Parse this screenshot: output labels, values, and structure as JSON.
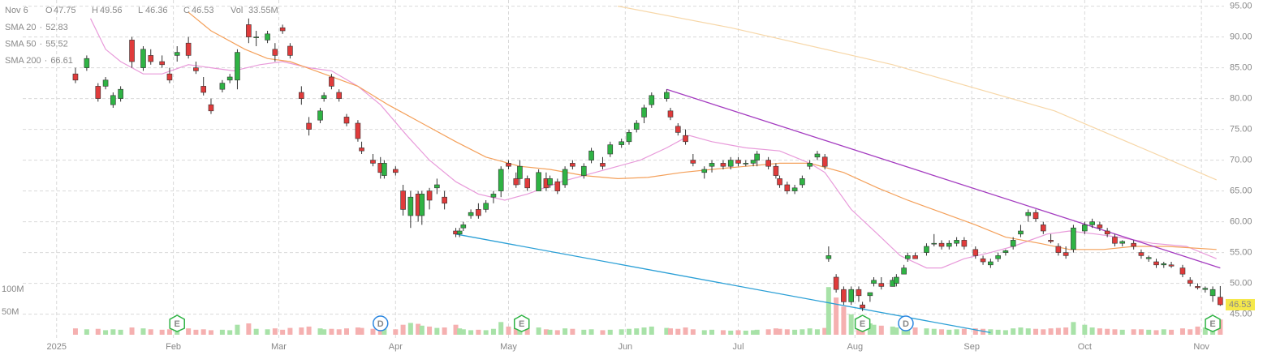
{
  "chart_data": {
    "type": "candlestick",
    "header": {
      "date": "Nov 6",
      "open_label": "O",
      "high_label": "H",
      "low_label": "L",
      "close_label": "C",
      "vol_label": "Vol",
      "vol": {
        "value": 33.55,
        "label": "33.55M"
      }
    },
    "x": [
      6,
      9,
      12,
      14,
      16,
      18,
      21,
      24,
      26,
      29,
      31,
      33,
      36,
      38,
      40,
      42,
      45,
      47,
      49,
      52,
      54,
      57,
      59,
      61,
      63,
      66,
      68,
      71,
      72,
      74,
      76,
      78,
      81,
      82,
      85,
      87,
      88,
      91,
      93,
      95,
      97,
      98,
      100,
      102,
      104,
      107,
      108,
      109,
      111,
      113,
      115,
      117,
      119,
      121,
      123,
      124,
      126,
      129,
      131,
      132,
      134,
      136,
      138,
      141,
      143,
      146,
      148,
      151,
      153,
      155,
      157,
      159,
      163,
      164,
      166,
      168,
      170,
      173,
      175,
      178,
      180,
      182,
      184,
      186,
      187,
      190,
      192,
      193,
      195,
      197,
      199,
      201,
      203,
      205,
      206,
      208,
      210,
      212,
      214,
      215,
      217,
      218,
      220,
      223,
      224,
      226,
      227,
      229,
      232,
      234,
      236,
      238,
      240,
      242,
      245,
      247,
      249,
      251,
      253,
      255,
      257,
      259,
      261,
      263,
      265,
      267,
      269,
      271,
      274,
      276,
      278,
      280,
      282,
      284,
      287,
      289,
      291,
      293,
      295,
      297,
      300,
      302,
      304,
      306,
      308,
      310
    ],
    "open": [
      84,
      85,
      82,
      82,
      79,
      80,
      89.5,
      85,
      87,
      86,
      84,
      87,
      89,
      85,
      82,
      79,
      81.5,
      83,
      83,
      92,
      90,
      89.5,
      88,
      91.5,
      88.5,
      81,
      76,
      76.5,
      80,
      83.5,
      81,
      77,
      76,
      72,
      70,
      69.5,
      67.5,
      68.5,
      65,
      61,
      64.5,
      61,
      65,
      65.5,
      64,
      58.5,
      58,
      59,
      61,
      62,
      62,
      64,
      65,
      69.5,
      67,
      67,
      67,
      65,
      67,
      66,
      66.5,
      66,
      69.5,
      67.5,
      70,
      69.5,
      71,
      72.5,
      73,
      75,
      77,
      79,
      80,
      78,
      75.5,
      74,
      70,
      68,
      69,
      69.5,
      69,
      70,
      69.5,
      69.5,
      70,
      70,
      69,
      67,
      66,
      65,
      66,
      69,
      70.5,
      70.5,
      54,
      51,
      49,
      47,
      49,
      46.5,
      48,
      50,
      50,
      49.5,
      50,
      51.5,
      54,
      54.5,
      55,
      56.5,
      56.5,
      56,
      56.5,
      57,
      55.5,
      54,
      53,
      54,
      55,
      56,
      58,
      61,
      61.5,
      59.5,
      57,
      56,
      55,
      55.5,
      58.5,
      59.5,
      59.5,
      58.5,
      57.5,
      56.5,
      56.5,
      55,
      54,
      53.5,
      53,
      53,
      52.5,
      50.5,
      49.5,
      49,
      48,
      47.75
    ],
    "high": [
      85,
      87,
      82.5,
      83.5,
      81,
      82,
      90,
      88.5,
      88,
      87,
      85,
      88.5,
      90,
      86,
      83.5,
      80,
      83,
      84,
      88,
      93,
      91,
      91,
      89,
      92,
      89,
      82,
      77,
      78.5,
      81,
      84,
      81.5,
      77.5,
      76.5,
      73,
      71,
      70.5,
      70,
      69,
      66,
      65,
      65,
      65,
      65.5,
      67,
      65,
      59,
      59,
      60,
      62,
      63,
      63.5,
      65,
      69,
      70,
      68,
      70,
      67.5,
      68.5,
      68,
      67.5,
      67,
      69,
      70,
      69.5,
      72,
      70.5,
      73,
      73.5,
      75,
      76.5,
      79,
      81,
      81.5,
      78.5,
      76,
      75,
      71,
      69,
      70,
      70,
      70.5,
      70.5,
      70,
      70,
      71.5,
      70.5,
      69.5,
      67.5,
      66.5,
      66,
      67.5,
      70,
      71.5,
      71,
      56,
      51.5,
      49.5,
      49.5,
      49.5,
      47,
      48.5,
      51,
      51,
      51,
      51.5,
      53,
      55,
      55,
      56.5,
      58,
      57,
      57,
      57.5,
      57.5,
      56,
      54.5,
      54,
      55,
      55.5,
      57.5,
      59.5,
      62,
      62,
      60,
      58,
      56.5,
      56,
      59.5,
      60,
      60.5,
      60,
      59,
      58,
      57,
      57,
      55.5,
      54.5,
      54,
      53.5,
      53.5,
      53,
      51,
      50,
      49.5,
      49.5,
      49.56
    ],
    "low": [
      82.5,
      84.5,
      79.5,
      81.5,
      78.5,
      79.5,
      85,
      84.5,
      85.5,
      85,
      82.5,
      86,
      86.5,
      84,
      80.5,
      77.5,
      81,
      82.5,
      81.5,
      89,
      88.5,
      89,
      86,
      90.5,
      86.5,
      79,
      74,
      76,
      79.5,
      81.5,
      79.5,
      75.5,
      73,
      71,
      69,
      67,
      67,
      67.5,
      61,
      59,
      60,
      59.5,
      62,
      64.5,
      62,
      57.5,
      57.5,
      58.5,
      60.5,
      60.5,
      61.5,
      63,
      64,
      68.5,
      65.5,
      66,
      65,
      65,
      65,
      65.5,
      64.5,
      65.5,
      68.5,
      67,
      69.5,
      68.5,
      70.5,
      72,
      72.5,
      74.5,
      76,
      78.5,
      79.5,
      76.5,
      74,
      72.5,
      69,
      67,
      68,
      68.5,
      68.5,
      69,
      69,
      69,
      69,
      68.5,
      67,
      65.5,
      64.5,
      64.5,
      65.5,
      68.5,
      70,
      68.5,
      53.5,
      48.5,
      46.5,
      46.5,
      47,
      45.5,
      47,
      49.5,
      49,
      49.5,
      49.5,
      51.5,
      53.5,
      54,
      54.5,
      56,
      55.5,
      55.5,
      56,
      55.5,
      54,
      53,
      52.5,
      53.5,
      54.5,
      55.5,
      57.5,
      60,
      60,
      58,
      56.5,
      54.5,
      54,
      55,
      58,
      59,
      58.5,
      57.5,
      56,
      56,
      55.5,
      54,
      53.5,
      52.5,
      52.5,
      52.5,
      51,
      49.5,
      49,
      48.5,
      47,
      46.36
    ],
    "close": [
      83,
      86.5,
      80,
      83,
      80.5,
      81.5,
      86,
      88,
      86,
      85.5,
      83,
      87.5,
      87,
      84.5,
      81,
      78,
      82.5,
      83.5,
      87.5,
      90,
      90,
      90.5,
      87,
      91,
      87,
      80,
      75,
      78,
      80.5,
      82,
      80,
      76,
      73.5,
      71.5,
      69.5,
      68,
      69.5,
      68,
      62,
      64,
      61,
      64.5,
      63.5,
      66,
      63,
      58,
      58.5,
      59.5,
      61.5,
      61,
      63,
      64.5,
      68.5,
      69,
      66,
      69,
      65.5,
      68,
      65.5,
      67,
      65,
      68.5,
      69,
      69,
      71.5,
      69,
      72.5,
      73,
      74.5,
      76,
      78.5,
      80.5,
      81,
      77,
      74.5,
      73,
      69.5,
      68.5,
      69.5,
      69,
      70,
      69.5,
      69.5,
      70,
      71,
      69,
      67.5,
      66,
      65,
      65.5,
      67,
      69.5,
      71,
      69,
      54.5,
      49,
      47,
      49,
      48,
      46,
      48.5,
      50.5,
      49.5,
      50.5,
      51,
      52.5,
      54.5,
      54,
      56,
      56.5,
      56,
      56.5,
      57,
      56,
      54.5,
      53.5,
      53.5,
      54.5,
      55.3,
      57,
      58.5,
      61.5,
      60.5,
      58.5,
      56.8,
      55,
      54.5,
      59,
      59.5,
      60,
      59,
      58,
      56.5,
      56.8,
      56,
      54.5,
      54.2,
      53,
      53.2,
      52.8,
      51.5,
      50,
      49.3,
      49.2,
      49,
      46.53
    ],
    "volume": [
      14,
      12,
      13,
      10,
      12,
      11,
      16,
      14,
      12,
      11,
      12,
      13,
      14,
      11,
      12,
      10,
      11,
      10,
      22,
      25,
      13,
      12,
      14,
      11,
      15,
      16,
      18,
      14,
      12,
      13,
      12,
      14,
      16,
      15,
      13,
      14,
      13,
      12,
      22,
      26,
      24,
      20,
      18,
      15,
      16,
      22,
      14,
      12,
      10,
      11,
      10,
      13,
      28,
      18,
      14,
      15,
      13,
      16,
      12,
      11,
      10,
      14,
      13,
      11,
      12,
      10,
      11,
      12,
      13,
      14,
      16,
      18,
      15,
      14,
      13,
      16,
      12,
      10,
      11,
      10,
      9,
      10,
      9,
      10,
      11,
      12,
      14,
      13,
      12,
      11,
      12,
      14,
      12,
      15,
      105,
      82,
      62,
      45,
      38,
      30,
      25,
      22,
      20,
      18,
      16,
      15,
      18,
      16,
      14,
      13,
      12,
      11,
      12,
      13,
      14,
      13,
      12,
      11,
      10,
      14,
      16,
      14,
      13,
      12,
      14,
      15,
      16,
      28,
      22,
      16,
      14,
      13,
      12,
      11,
      12,
      12,
      11,
      10,
      12,
      11,
      14,
      12,
      18,
      16,
      20,
      33.55
    ],
    "up_color": "#2fb344",
    "down_color": "#e03b3b",
    "up_volume_color": "#a8e2a8",
    "down_volume_color": "#f5b0b0",
    "xlim": [
      -8,
      311
    ],
    "xticks": [
      {
        "value": 1,
        "label": "2025"
      },
      {
        "value": 32,
        "label": "Feb"
      },
      {
        "value": 60,
        "label": "Mar"
      },
      {
        "value": 91,
        "label": "Apr"
      },
      {
        "value": 121,
        "label": "May"
      },
      {
        "value": 152,
        "label": "Jun"
      },
      {
        "value": 182,
        "label": "Jul"
      },
      {
        "value": 213,
        "label": "Aug"
      },
      {
        "value": 244,
        "label": "Sep"
      },
      {
        "value": 274,
        "label": "Oct"
      },
      {
        "value": 305,
        "label": "Nov"
      }
    ],
    "ylim": [
      38.5,
      96
    ],
    "yticks": [
      {
        "value": 45,
        "label": "45.00"
      },
      {
        "value": 50,
        "label": "50.00"
      },
      {
        "value": 55,
        "label": "55.00"
      },
      {
        "value": 60,
        "label": "60.00"
      },
      {
        "value": 65,
        "label": "65.00"
      },
      {
        "value": 70,
        "label": "70.00"
      },
      {
        "value": 75,
        "label": "75.00"
      },
      {
        "value": 80,
        "label": "80.00"
      },
      {
        "value": 85,
        "label": "85.00"
      },
      {
        "value": 90,
        "label": "90.00"
      },
      {
        "value": 95,
        "label": "95.00"
      }
    ],
    "volume_ylim": [
      0,
      737.5
    ],
    "volume_yticks": [
      {
        "value": 50,
        "label": "50M"
      },
      {
        "value": 100,
        "label": "100M"
      }
    ],
    "grid": true,
    "last_price_color": "#f5e84a",
    "sma": [
      {
        "name": "SMA 20",
        "separator": "·",
        "value": 52.83,
        "color": "#e89ada",
        "x": [
          10,
          14,
          18,
          24,
          29,
          36,
          42,
          48,
          55,
          61,
          68,
          74,
          81,
          87,
          94,
          100,
          107,
          113,
          120,
          126,
          135,
          141,
          150,
          156,
          163,
          169,
          175,
          184,
          193,
          201,
          205,
          212,
          219,
          225,
          232,
          236,
          242,
          249,
          255,
          264,
          270,
          277,
          283,
          292,
          301,
          309
        ],
        "values": [
          93,
          88,
          86,
          84,
          84,
          85.5,
          85,
          84.5,
          85.5,
          86,
          85,
          84.5,
          82,
          79,
          74,
          70,
          66.5,
          64.5,
          63.5,
          64.5,
          66.5,
          67.5,
          69,
          70,
          72,
          74,
          73,
          72,
          71.5,
          69.5,
          68,
          62,
          58,
          54.5,
          52.5,
          52.5,
          54,
          55,
          56,
          58,
          58.5,
          58,
          57.5,
          56.5,
          56,
          54
        ]
      },
      {
        "name": "SMA 50",
        "separator": "·",
        "value": 55.52,
        "color": "#f4a05a",
        "x": [
          36,
          42,
          51,
          57,
          63,
          72,
          81,
          89,
          98,
          107,
          115,
          124,
          132,
          141,
          150,
          158,
          167,
          175,
          184,
          193,
          201,
          210,
          219,
          227,
          236,
          245,
          253,
          262,
          270,
          279,
          287,
          296,
          309
        ],
        "values": [
          94,
          91,
          88,
          86.5,
          86,
          84,
          82,
          79,
          76,
          73,
          70.5,
          69,
          68.5,
          67.5,
          67,
          67.2,
          68,
          68.5,
          69,
          69.5,
          69.5,
          68,
          65.5,
          63.5,
          61.5,
          59.5,
          57.5,
          56.5,
          55.5,
          55.5,
          56,
          56,
          55.5
        ]
      },
      {
        "name": "SMA 200",
        "separator": "·",
        "value": 66.61,
        "color": "#f7d7a8",
        "x": [
          150,
          180,
          223,
          266,
          309
        ],
        "values": [
          95,
          91.5,
          85.5,
          78,
          66.8
        ]
      }
    ],
    "trendlines": [
      {
        "color": "#a43cc0",
        "x": [
          163,
          310
        ],
        "values": [
          81.5,
          52.5
        ]
      },
      {
        "color": "#2a9fd6",
        "x": [
          107,
          249
        ],
        "values": [
          58,
          42
        ]
      }
    ],
    "events": [
      {
        "x": 33,
        "label": "E",
        "color": "#2fb344"
      },
      {
        "x": 87,
        "label": "D",
        "color": "#2a86e0"
      },
      {
        "x": 124.5,
        "label": "E",
        "color": "#2fb344"
      },
      {
        "x": 215,
        "label": "E",
        "color": "#2fb344"
      },
      {
        "x": 226.5,
        "label": "D",
        "color": "#2a86e0"
      },
      {
        "x": 308,
        "label": "E",
        "color": "#2fb344"
      }
    ]
  }
}
